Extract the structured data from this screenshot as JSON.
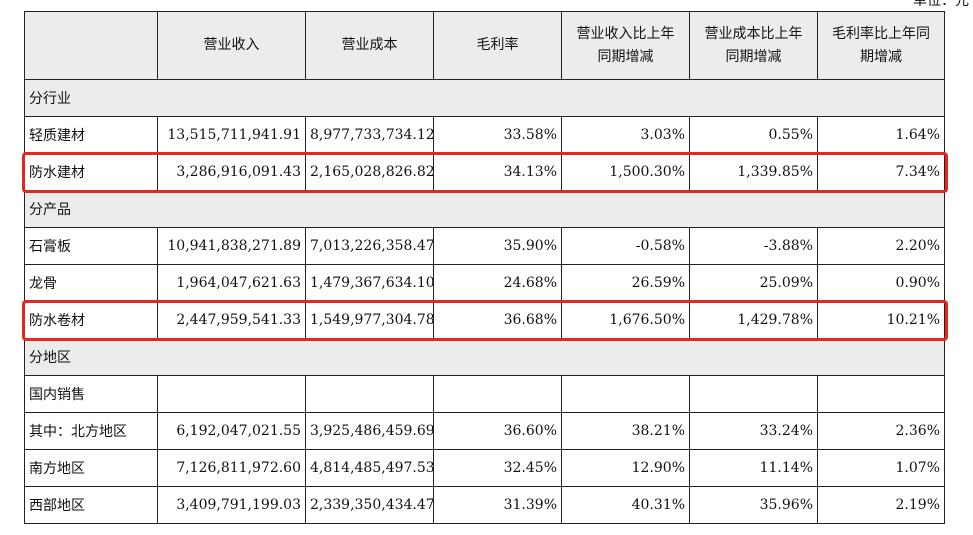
{
  "corner_note": "单位：元",
  "highlight_color": "#e8261f",
  "headers": [
    "",
    "营业收入",
    "营业成本",
    "毛利率",
    "营业收入比上年同期增减",
    "营业成本比上年同期增减",
    "毛利率比上年同期增减"
  ],
  "header_lines": [
    [
      ""
    ],
    [
      "营业收入"
    ],
    [
      "营业成本"
    ],
    [
      "毛利率"
    ],
    [
      "营业收入比上年",
      "同期增减"
    ],
    [
      "营业成本比上年",
      "同期增减"
    ],
    [
      "毛利率比上年同",
      "期增减"
    ]
  ],
  "rows": [
    {
      "type": "section",
      "label": "分行业"
    },
    {
      "type": "data",
      "label": "轻质建材",
      "cells": [
        "13,515,711,941.91",
        "8,977,733,734.12",
        "33.58%",
        "3.03%",
        "0.55%",
        "1.64%"
      ]
    },
    {
      "type": "data",
      "label": "防水建材",
      "cells": [
        "3,286,916,091.43",
        "2,165,028,826.82",
        "34.13%",
        "1,500.30%",
        "1,339.85%",
        "7.34%"
      ],
      "highlight": true
    },
    {
      "type": "section",
      "label": "分产品"
    },
    {
      "type": "data",
      "label": "石膏板",
      "cells": [
        "10,941,838,271.89",
        "7,013,226,358.47",
        "35.90%",
        "-0.58%",
        "-3.88%",
        "2.20%"
      ]
    },
    {
      "type": "data",
      "label": "龙骨",
      "cells": [
        "1,964,047,621.63",
        "1,479,367,634.10",
        "24.68%",
        "26.59%",
        "25.09%",
        "0.90%"
      ]
    },
    {
      "type": "data",
      "label": "防水卷材",
      "cells": [
        "2,447,959,541.33",
        "1,549,977,304.78",
        "36.68%",
        "1,676.50%",
        "1,429.78%",
        "10.21%"
      ],
      "highlight": true
    },
    {
      "type": "section",
      "label": "分地区"
    },
    {
      "type": "data",
      "label": "国内销售",
      "cells": [
        "",
        "",
        "",
        "",
        "",
        ""
      ]
    },
    {
      "type": "data",
      "label": "其中：北方地区",
      "cells": [
        "6,192,047,021.55",
        "3,925,486,459.69",
        "36.60%",
        "38.21%",
        "33.24%",
        "2.36%"
      ]
    },
    {
      "type": "data",
      "label": "南方地区",
      "cells": [
        "7,126,811,972.60",
        "4,814,485,497.53",
        "32.45%",
        "12.90%",
        "11.14%",
        "1.07%"
      ]
    },
    {
      "type": "data",
      "label": "西部地区",
      "cells": [
        "3,409,791,199.03",
        "2,339,350,434.47",
        "31.39%",
        "40.31%",
        "35.96%",
        "2.19%"
      ]
    }
  ]
}
